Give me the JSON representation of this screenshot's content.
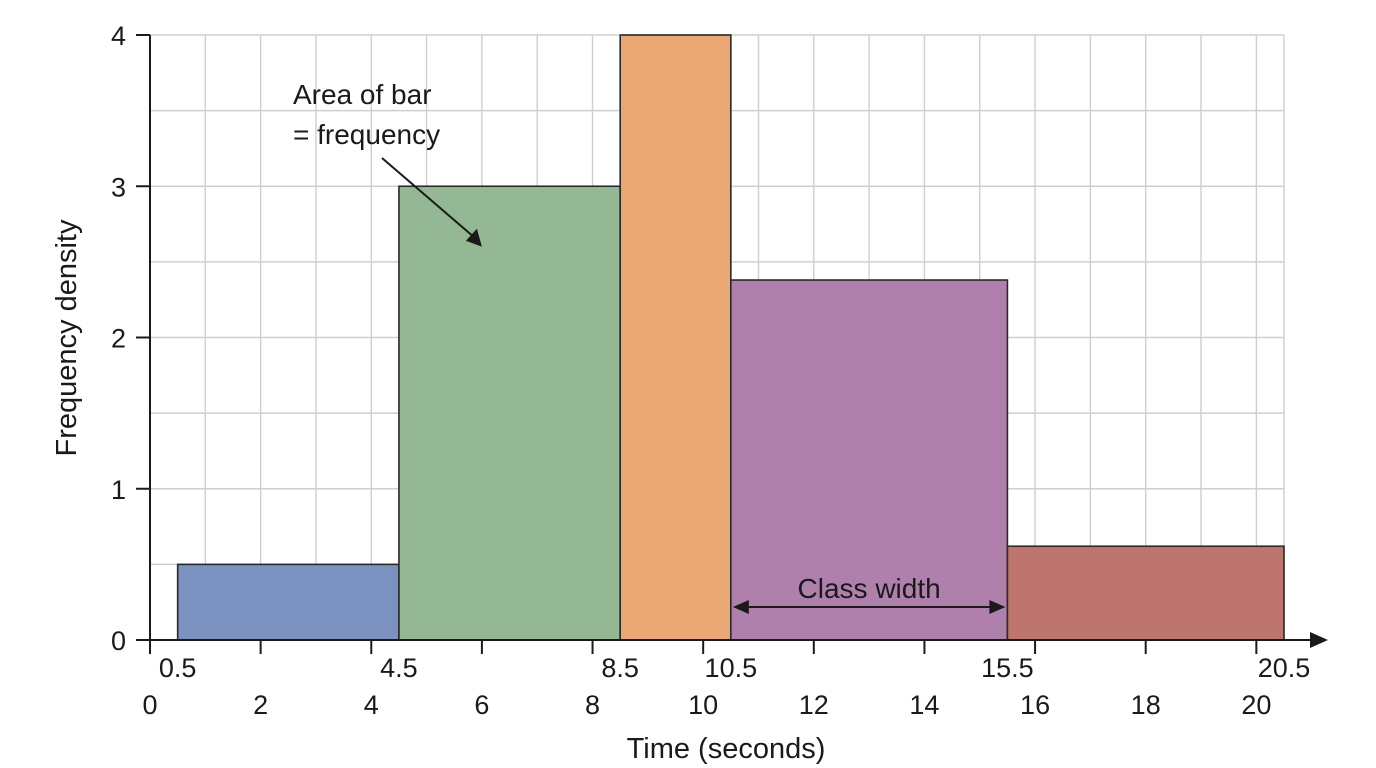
{
  "chart_data": {
    "type": "bar",
    "title": "",
    "xlabel": "Time (seconds)",
    "ylabel": "Frequency density",
    "xlim": [
      0,
      20.5
    ],
    "ylim": [
      0,
      4
    ],
    "grid": true,
    "x_major_ticks": [
      0,
      2,
      4,
      6,
      8,
      10,
      12,
      14,
      16,
      18,
      20
    ],
    "x_major_tick_labels": [
      "0",
      "2",
      "4",
      "6",
      "8",
      "10",
      "12",
      "14",
      "16",
      "18",
      "20"
    ],
    "x_boundary_labels": [
      {
        "value": 0.5,
        "label": "0.5"
      },
      {
        "value": 4.5,
        "label": "4.5"
      },
      {
        "value": 8.5,
        "label": "8.5"
      },
      {
        "value": 10.5,
        "label": "10.5"
      },
      {
        "value": 15.5,
        "label": "15.5"
      },
      {
        "value": 20.5,
        "label": "20.5"
      }
    ],
    "y_ticks": [
      0,
      1,
      2,
      3,
      4
    ],
    "y_tick_labels": [
      "0",
      "1",
      "2",
      "3",
      "4"
    ],
    "bars": [
      {
        "x_start": 0.5,
        "x_end": 4.5,
        "value": 0.5,
        "color": "#7b91bf"
      },
      {
        "x_start": 4.5,
        "x_end": 8.5,
        "value": 3.0,
        "color": "#93b893"
      },
      {
        "x_start": 8.5,
        "x_end": 10.5,
        "value": 4.0,
        "color": "#eba874"
      },
      {
        "x_start": 10.5,
        "x_end": 15.5,
        "value": 2.38,
        "color": "#b080ad"
      },
      {
        "x_start": 15.5,
        "x_end": 20.5,
        "value": 0.62,
        "color": "#bd756d"
      }
    ],
    "annotations": [
      {
        "name": "area-note",
        "lines": [
          "Area of bar",
          "= frequency"
        ],
        "points_to": {
          "x": 6.0,
          "y": 2.6
        }
      },
      {
        "name": "class-width-note",
        "text": "Class width",
        "from_x": 10.5,
        "to_x": 15.5,
        "y": 0.2
      }
    ],
    "colors": {
      "grid": "#cfcfcf",
      "axis": "#1a1a1a",
      "bar_outline": "#2a2a2a"
    }
  }
}
